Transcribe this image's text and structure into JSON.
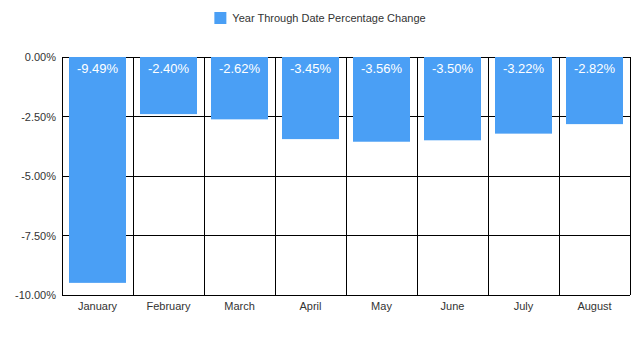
{
  "chart_data": {
    "type": "bar",
    "categories": [
      "January",
      "February",
      "March",
      "April",
      "May",
      "June",
      "July",
      "August"
    ],
    "series": [
      {
        "name": "Year Through Date Percentage Change",
        "color": "#4a9ff5",
        "values": [
          -9.49,
          -2.4,
          -2.62,
          -3.45,
          -3.56,
          -3.5,
          -3.22,
          -2.82
        ],
        "value_labels": [
          "-9.49%",
          "-2.40%",
          "-2.62%",
          "-3.45%",
          "-3.56%",
          "-3.50%",
          "-3.22%",
          "-2.82%"
        ]
      }
    ],
    "ylim": [
      -10,
      0
    ],
    "yticks": [
      {
        "value": 0,
        "label": "0.00%"
      },
      {
        "value": -2.5,
        "label": "-2.50%"
      },
      {
        "value": -5,
        "label": "-5.00%"
      },
      {
        "value": -7.5,
        "label": "-7.50%"
      },
      {
        "value": -10,
        "label": "-10.00%"
      }
    ],
    "grid": true,
    "legend": "top",
    "data_labels": true
  }
}
